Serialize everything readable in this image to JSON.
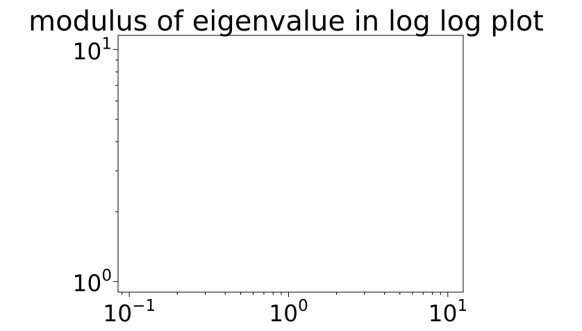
{
  "chart_data": {
    "type": "scatter",
    "title": "modulus of eigenvalue in log log plot",
    "xlabel": "",
    "ylabel": "",
    "xscale": "log",
    "yscale": "log",
    "xlim": [
      0.085,
      12.5
    ],
    "ylim": [
      0.9,
      11.5
    ],
    "grid": false,
    "x_ticks": [
      {
        "base": "10",
        "exp": "−1",
        "value": 0.1
      },
      {
        "base": "10",
        "exp": "0",
        "value": 1
      },
      {
        "base": "10",
        "exp": "1",
        "value": 10
      }
    ],
    "y_ticks": [
      {
        "base": "10",
        "exp": "0",
        "value": 1
      },
      {
        "base": "10",
        "exp": "1",
        "value": 10
      }
    ],
    "series": []
  }
}
